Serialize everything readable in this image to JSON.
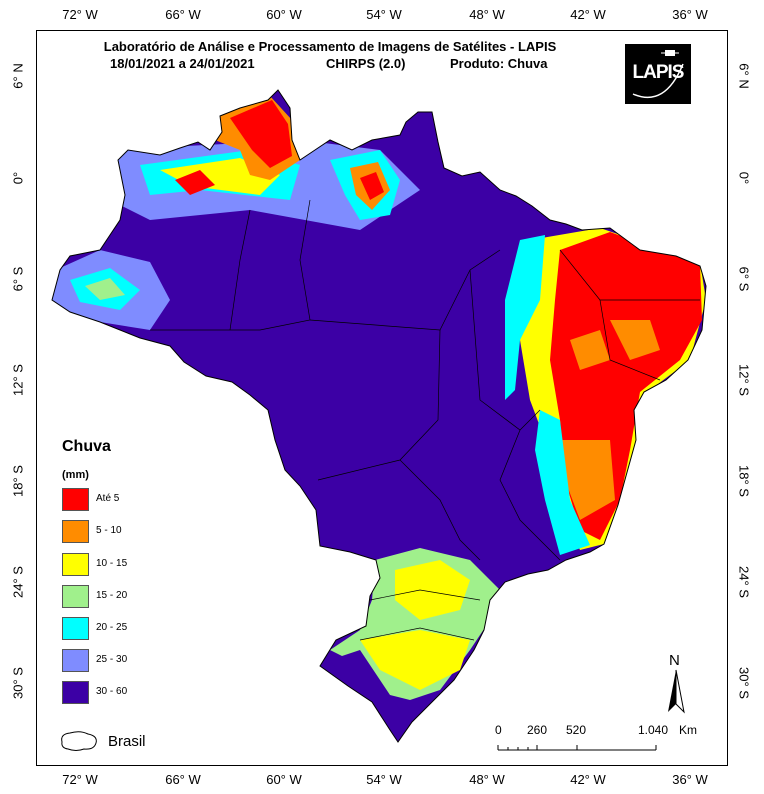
{
  "map": {
    "title": "Laboratório de Análise e Processamento de Imagens de Satélites - LAPIS",
    "period": "18/01/2021  a 24/01/2021",
    "dataset": "CHIRPS (2.0)",
    "product": "Produto: Chuva",
    "logo_text": "LAPIS"
  },
  "longitude_ticks": [
    "72° W",
    "66° W",
    "60° W",
    "54° W",
    "48° W",
    "42° W",
    "36° W"
  ],
  "latitude_ticks": [
    "6° N",
    "0°",
    "6° S",
    "12° S",
    "18° S",
    "24° S",
    "30° S"
  ],
  "legend": {
    "title": "Chuva",
    "unit": "(mm)",
    "classes": [
      {
        "label": "Até 5",
        "color": "#ff0000"
      },
      {
        "label": "5 - 10",
        "color": "#ff8c00"
      },
      {
        "label": "10 - 15",
        "color": "#ffff00"
      },
      {
        "label": "15 - 20",
        "color": "#a0f08c"
      },
      {
        "label": "20 - 25",
        "color": "#00ffff"
      },
      {
        "label": "25 - 30",
        "color": "#7f8cff"
      },
      {
        "label": "30 - 60",
        "color": "#3c00a5"
      }
    ],
    "boundary_label": "Brasil"
  },
  "scale_bar": {
    "labels": [
      "0",
      "260",
      "520",
      "1.040"
    ],
    "unit": "Km"
  },
  "north_arrow": {
    "label": "N",
    "icon": "north-arrow-icon"
  }
}
